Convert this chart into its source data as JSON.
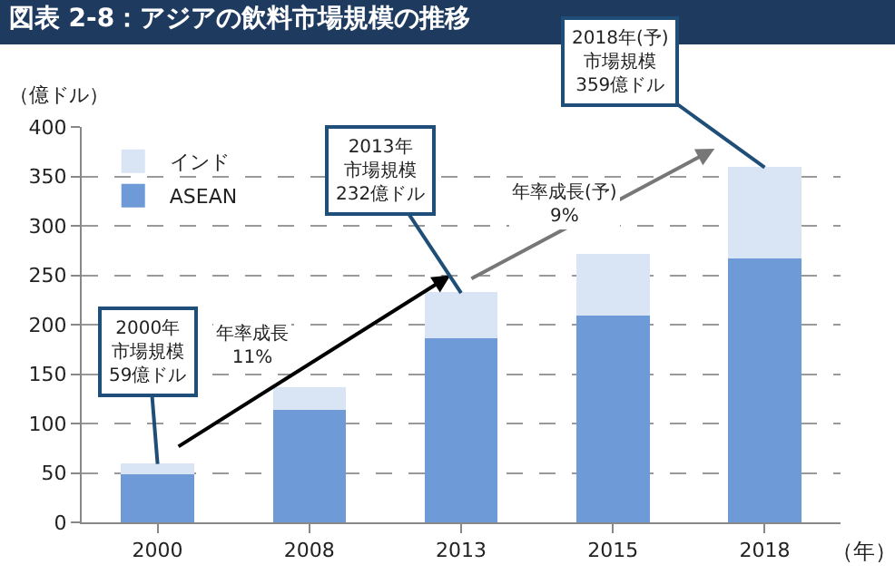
{
  "chart_data": {
    "type": "bar",
    "title": "図表 2-8：アジアの飲料市場規模の推移",
    "ylabel": "（億ドル）",
    "xlabel": "（年）",
    "categories": [
      "2000",
      "2008",
      "2013",
      "2015",
      "2018"
    ],
    "stacked": true,
    "series": [
      {
        "name": "ASEAN",
        "color": "#6e9bd8",
        "values": [
          50,
          115,
          187,
          210,
          268
        ]
      },
      {
        "name": "インド",
        "color": "#d9e4f4",
        "values": [
          9,
          21,
          45,
          61,
          91
        ]
      }
    ],
    "ylim": [
      0,
      400
    ],
    "yticks": [
      0,
      50,
      100,
      150,
      200,
      250,
      300,
      350,
      400
    ],
    "grid": "y",
    "legend": "top left",
    "annotations": [
      "2000年",
      "市場規模",
      {
        "text": "59億ドル",
        "x": "2000",
        "y": 59
      },
      "2013年",
      "市場規模",
      {
        "text": "232億ドル",
        "x": "2013",
        "y": 232
      },
      "2018年(予)",
      "市場規模",
      {
        "text": "359億ドル",
        "x": "2018",
        "y": 359
      },
      "年率成長\n11%",
      "年率成長(予)\n9%"
    ]
  }
}
